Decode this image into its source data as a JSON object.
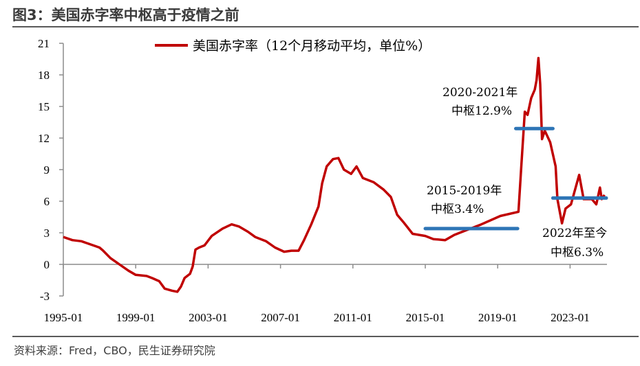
{
  "title": "图3：美国赤字率中枢高于疫情之前",
  "source": "资料来源：Fred，CBO，民生证券研究院",
  "chart_data": {
    "type": "line",
    "title": "",
    "xlabel": "",
    "ylabel": "",
    "ylim": [
      -3,
      21
    ],
    "yticks": [
      "21",
      "18",
      "15",
      "12",
      "9",
      "6",
      "3",
      "0",
      "-3"
    ],
    "xticks": [
      "1995-01",
      "1999-01",
      "2003-01",
      "2007-01",
      "2011-01",
      "2015-01",
      "2019-01",
      "2023-01"
    ],
    "grid": false,
    "legend_position": "top",
    "colors": {
      "series": "#C00000",
      "pivot": "#2E75B6"
    },
    "series": [
      {
        "name": "美国赤字率（12个月移动平均，单位%）",
        "x": [
          1995.0,
          1995.5,
          1996.0,
          1996.5,
          1997.0,
          1997.2,
          1997.6,
          1998.1,
          1998.6,
          1999.0,
          1999.6,
          1999.9,
          2000.3,
          2000.6,
          2001.0,
          2001.3,
          2001.5,
          2001.7,
          2002.0,
          2002.15,
          2002.3,
          2002.5,
          2002.8,
          2003.2,
          2003.8,
          2004.3,
          2004.7,
          2005.2,
          2005.6,
          2006.2,
          2006.7,
          2007.2,
          2007.6,
          2008.0,
          2008.3,
          2008.7,
          2009.1,
          2009.3,
          2009.55,
          2009.9,
          2010.2,
          2010.5,
          2010.9,
          2011.2,
          2011.55,
          2012.15,
          2012.7,
          2013.1,
          2013.45,
          2013.8,
          2014.3,
          2015.0,
          2015.45,
          2016.1,
          2016.6,
          2017.35,
          2018.1,
          2019.15,
          2020.15,
          2020.3,
          2020.5,
          2020.65,
          2020.85,
          2021.05,
          2021.15,
          2021.25,
          2021.35,
          2021.45,
          2021.6,
          2021.9,
          2022.2,
          2022.3,
          2022.55,
          2022.75,
          2023.05,
          2023.5,
          2023.75,
          2024.2,
          2024.45,
          2024.65,
          2024.75,
          2024.9
        ],
        "values": [
          2.6,
          2.3,
          2.2,
          1.9,
          1.6,
          1.3,
          0.6,
          0.0,
          -0.6,
          -1.0,
          -1.1,
          -1.3,
          -1.6,
          -2.3,
          -2.5,
          -2.6,
          -2.1,
          -1.3,
          -0.9,
          -0.2,
          1.4,
          1.6,
          1.8,
          2.7,
          3.4,
          3.8,
          3.6,
          3.1,
          2.6,
          2.2,
          1.6,
          1.2,
          1.3,
          1.3,
          2.3,
          3.8,
          5.5,
          7.7,
          9.3,
          10.0,
          10.1,
          9.0,
          8.6,
          9.3,
          8.2,
          7.8,
          7.1,
          6.4,
          4.7,
          4.0,
          2.9,
          2.7,
          2.4,
          2.3,
          2.8,
          3.3,
          3.8,
          4.6,
          5.0,
          9.2,
          14.5,
          14.2,
          15.8,
          16.6,
          17.5,
          19.6,
          17.1,
          11.9,
          12.7,
          11.6,
          9.3,
          6.2,
          3.9,
          5.3,
          5.7,
          8.5,
          6.2,
          6.2,
          5.7,
          7.3,
          6.2,
          6.6
        ]
      }
    ],
    "pivots": [
      {
        "label_line1": "2015-2019年",
        "label_line2": "中枢3.4%",
        "x_start": 2015.0,
        "x_end": 2020.1,
        "value": 3.4
      },
      {
        "label_line1": "2020-2021年",
        "label_line2": "中枢12.9%",
        "x_start": 2020.0,
        "x_end": 2022.05,
        "value": 12.9
      },
      {
        "label_line1": "2022年至今",
        "label_line2": "中枢6.3%",
        "x_start": 2022.05,
        "x_end": 2025.0,
        "value": 6.3
      }
    ]
  }
}
